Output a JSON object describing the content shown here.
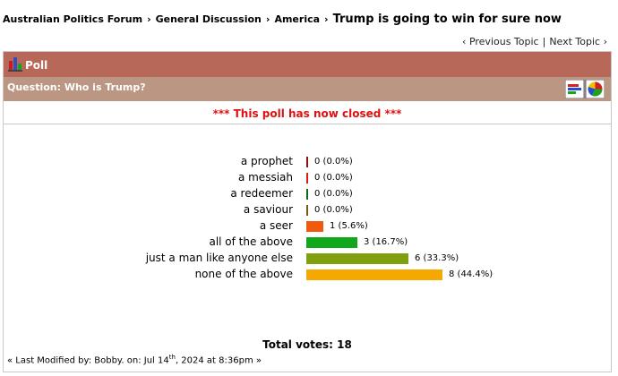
{
  "breadcrumb": {
    "items": [
      "Australian Politics Forum",
      "General Discussion",
      "America"
    ],
    "current": "Trump is going to win for sure now",
    "separator": "›"
  },
  "topic_nav": {
    "previous": "‹ Previous Topic",
    "divider": "|",
    "next": "Next Topic ›"
  },
  "poll": {
    "header": "Poll",
    "question": "Question: Who is Trump?",
    "status": "*** This poll has now closed ***",
    "options": [
      {
        "label": "a prophet",
        "votes": 0,
        "value_label": "0 (0.0%)",
        "color": "#8b1010"
      },
      {
        "label": "a messiah",
        "votes": 0,
        "value_label": "0 (0.0%)",
        "color": "#e01818"
      },
      {
        "label": "a redeemer",
        "votes": 0,
        "value_label": "0 (0.0%)",
        "color": "#0a6a1a"
      },
      {
        "label": "a saviour",
        "votes": 0,
        "value_label": "0 (0.0%)",
        "color": "#7a5a10"
      },
      {
        "label": "a seer",
        "votes": 1,
        "value_label": "1 (5.6%)",
        "color": "#f05a10"
      },
      {
        "label": "all of the above",
        "votes": 3,
        "value_label": "3 (16.7%)",
        "color": "#10a81a"
      },
      {
        "label": "just a man like anyone else",
        "votes": 6,
        "value_label": "6 (33.3%)",
        "color": "#80a010"
      },
      {
        "label": "none of the above",
        "votes": 8,
        "value_label": "8 (44.4%)",
        "color": "#f5a800"
      }
    ],
    "total_label": "Total votes:",
    "total_votes": 18,
    "last_modified": {
      "before": "« Last Modified by: Bobby. on: Jul 14",
      "sup": "th",
      "after": ", 2024 at 8:36pm »"
    }
  }
}
